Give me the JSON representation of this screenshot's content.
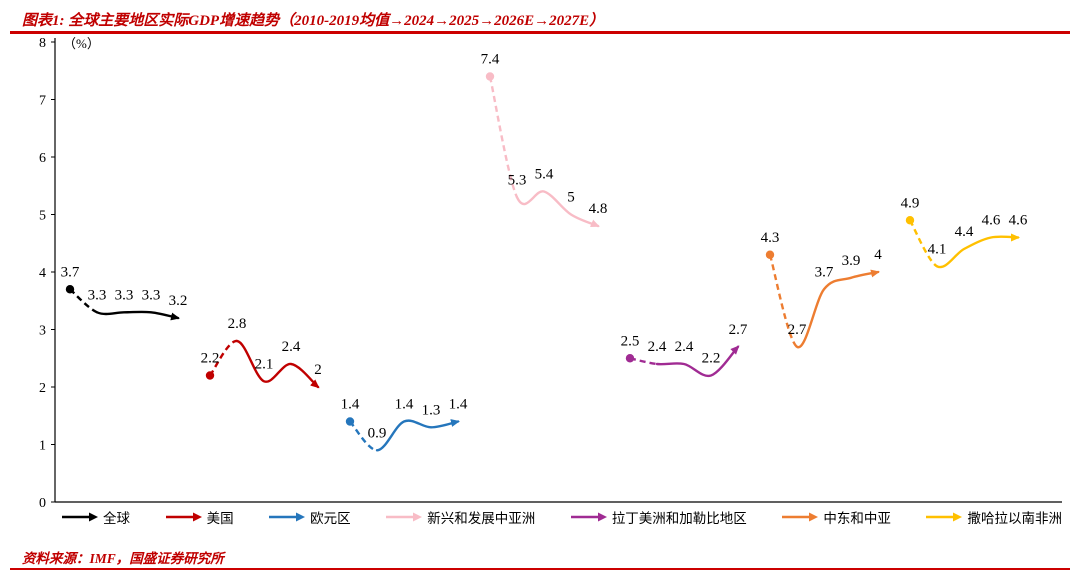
{
  "title": "图表1: 全球主要地区实际GDP增速趋势（2010-2019均值→2024→2025→2026E→2027E）",
  "source": "资料来源：IMF，国盛证券研究所",
  "accent_color": "#c00000",
  "chart_data": {
    "type": "line",
    "title": "全球主要地区实际GDP增速趋势",
    "ylabel": "（%）",
    "ylim": [
      0,
      8
    ],
    "yticks": [
      0,
      1,
      2,
      3,
      4,
      5,
      6,
      7,
      8
    ],
    "grid": false,
    "legend_position": "bottom",
    "stages": [
      "2010-2019均值",
      "2024",
      "2025",
      "2026E",
      "2027E"
    ],
    "series": [
      {
        "name": "全球",
        "color": "#000000",
        "values": [
          3.7,
          3.3,
          3.3,
          3.3,
          3.2
        ]
      },
      {
        "name": "美国",
        "color": "#c00000",
        "values": [
          2.2,
          2.8,
          2.1,
          2.4,
          2
        ]
      },
      {
        "name": "欧元区",
        "color": "#2576bc",
        "values": [
          1.4,
          0.9,
          1.4,
          1.3,
          1.4
        ]
      },
      {
        "name": "新兴和发展中亚洲",
        "color": "#f8bcc6",
        "values": [
          7.4,
          5.3,
          5.4,
          5,
          4.8
        ]
      },
      {
        "name": "拉丁美洲和加勒比地区",
        "color": "#a02b93",
        "values": [
          2.5,
          2.4,
          2.4,
          2.2,
          2.7
        ]
      },
      {
        "name": "中东和中亚",
        "color": "#ed7d31",
        "values": [
          4.3,
          2.7,
          3.7,
          3.9,
          4
        ]
      },
      {
        "name": "撒哈拉以南非洲",
        "color": "#ffc000",
        "values": [
          4.9,
          4.1,
          4.4,
          4.6,
          4.6
        ]
      }
    ]
  }
}
